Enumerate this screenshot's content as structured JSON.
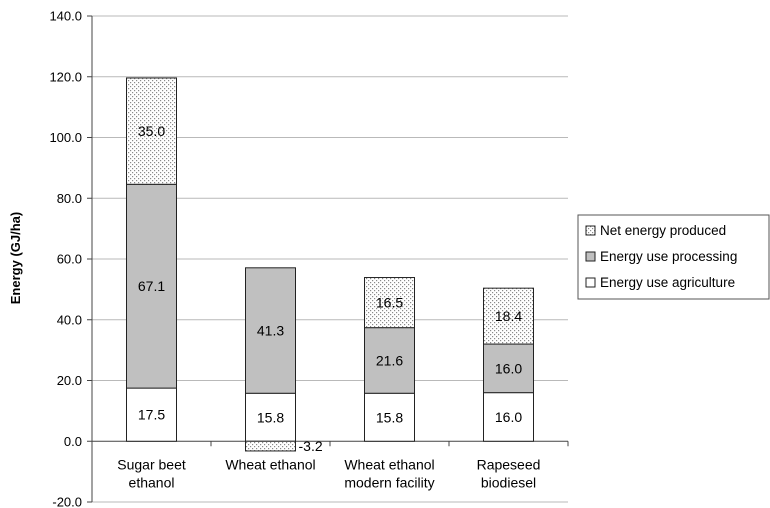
{
  "chart_data": {
    "type": "bar",
    "stacked": true,
    "title": "",
    "xlabel": "",
    "ylabel": "Energy (GJ/ha)",
    "ylim": [
      -20,
      140
    ],
    "yticks": [
      "-20.0",
      "0.0",
      "20.0",
      "40.0",
      "60.0",
      "80.0",
      "100.0",
      "120.0",
      "140.0"
    ],
    "grid": true,
    "legend_position": "right",
    "categories": [
      [
        "Sugar beet",
        "ethanol"
      ],
      [
        "Wheat ethanol"
      ],
      [
        "Wheat ethanol",
        "modern facility"
      ],
      [
        "Rapeseed",
        "biodiesel"
      ]
    ],
    "series": [
      {
        "name": "Energy use agriculture",
        "pattern": "white",
        "color": "#ffffff",
        "values": [
          17.5,
          15.8,
          15.8,
          16.0
        ],
        "labels": [
          "17.5",
          "15.8",
          "15.8",
          "16.0"
        ]
      },
      {
        "name": "Energy use processing",
        "pattern": "gray",
        "color": "#c0c0c0",
        "values": [
          67.1,
          41.3,
          21.6,
          16.0
        ],
        "labels": [
          "67.1",
          "41.3",
          "21.6",
          "16.0"
        ]
      },
      {
        "name": "Net energy produced",
        "pattern": "dotted",
        "color": "#e6e6e6",
        "values": [
          35.0,
          -3.2,
          16.5,
          18.4
        ],
        "labels": [
          "35.0",
          "-3.2",
          "16.5",
          "18.4"
        ]
      }
    ],
    "legend_order": [
      "Net energy produced",
      "Energy use processing",
      "Energy use agriculture"
    ]
  }
}
